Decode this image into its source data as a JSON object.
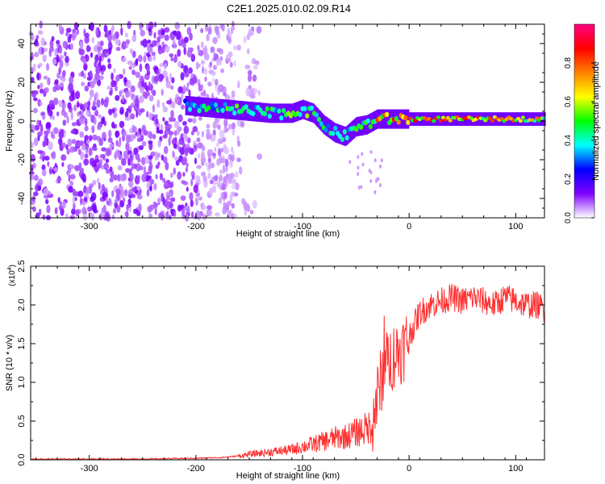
{
  "chart_data": [
    {
      "type": "heatmap",
      "title": "C2E1.2025.010.02.09.R14",
      "xlabel": "Height of straight line (km)",
      "ylabel": "Frequency (Hz)",
      "xlim": [
        -355,
        127
      ],
      "ylim": [
        -50,
        50
      ],
      "xticks": [
        -300,
        -200,
        -100,
        0,
        100
      ],
      "xtick_labels": [
        "-300",
        "-200",
        "-100",
        "0",
        "100"
      ],
      "yticks": [
        -40,
        -20,
        0,
        20,
        40
      ],
      "ytick_labels": [
        "-40",
        "-20",
        "0",
        "20",
        "40"
      ],
      "colorbar": {
        "label": "Normalized spectral amplitude",
        "range": [
          0,
          1
        ],
        "ticks": [
          0.0,
          0.2,
          0.4,
          0.6,
          0.8
        ],
        "tick_labels": [
          "0.0",
          "0.2",
          "0.4",
          "0.6",
          "0.8"
        ],
        "colors": [
          "#ffffff",
          "#7f00ff",
          "#0000ff",
          "#00ffff",
          "#00ff00",
          "#ffff00",
          "#ff8000",
          "#ff0000",
          "#ff0080"
        ]
      },
      "ridge": {
        "x": [
          -210,
          -190,
          -170,
          -150,
          -130,
          -110,
          -100,
          -90,
          -80,
          -70,
          -60,
          -50,
          -40,
          -30,
          -20,
          0,
          20,
          40,
          60,
          80,
          100,
          120
        ],
        "freq": [
          8,
          7,
          6,
          5,
          4,
          4,
          6,
          4,
          -2,
          -6,
          -8,
          -3,
          -2,
          1,
          1,
          1,
          1,
          1,
          1,
          1,
          1,
          1
        ],
        "amp": [
          0.35,
          0.45,
          0.5,
          0.55,
          0.5,
          0.55,
          0.6,
          0.5,
          0.45,
          0.5,
          0.45,
          0.5,
          0.55,
          0.75,
          0.8,
          0.85,
          0.85,
          0.8,
          0.8,
          0.75,
          0.75,
          0.7
        ]
      },
      "noise_region_x": [
        -355,
        -165
      ]
    },
    {
      "type": "line",
      "xlabel": "Height of straight line (km)",
      "ylabel": "SNR (10 * v/v)",
      "y_multiplier": "(x10",
      "y_multiplier_exp": "4",
      "xlim": [
        -355,
        127
      ],
      "ylim": [
        0,
        2.5
      ],
      "xticks": [
        -300,
        -200,
        -100,
        0,
        100
      ],
      "xtick_labels": [
        "-300",
        "-200",
        "-100",
        "0",
        "100"
      ],
      "yticks": [
        0.0,
        0.5,
        1.0,
        1.5,
        2.0,
        2.5
      ],
      "ytick_labels": [
        "0.0",
        "0.5",
        "1.0",
        "1.5",
        "2.0",
        "2.5"
      ],
      "series": [
        {
          "name": "SNR",
          "color": "#ff3030",
          "x": [
            -355,
            -300,
            -250,
            -200,
            -175,
            -160,
            -150,
            -130,
            -110,
            -100,
            -90,
            -80,
            -70,
            -60,
            -50,
            -45,
            -40,
            -35,
            -30,
            -25,
            -20,
            -15,
            -10,
            -5,
            0,
            10,
            20,
            30,
            40,
            50,
            60,
            70,
            80,
            90,
            100,
            110,
            120,
            127
          ],
          "y": [
            0.01,
            0.01,
            0.01,
            0.02,
            0.03,
            0.05,
            0.07,
            0.1,
            0.13,
            0.17,
            0.2,
            0.24,
            0.28,
            0.3,
            0.35,
            0.38,
            0.4,
            0.45,
            0.8,
            1.1,
            1.25,
            1.35,
            1.4,
            1.45,
            1.6,
            1.9,
            2.0,
            2.05,
            2.1,
            2.05,
            2.1,
            2.05,
            2.0,
            2.1,
            2.05,
            2.0,
            2.0,
            1.95
          ]
        }
      ]
    }
  ]
}
